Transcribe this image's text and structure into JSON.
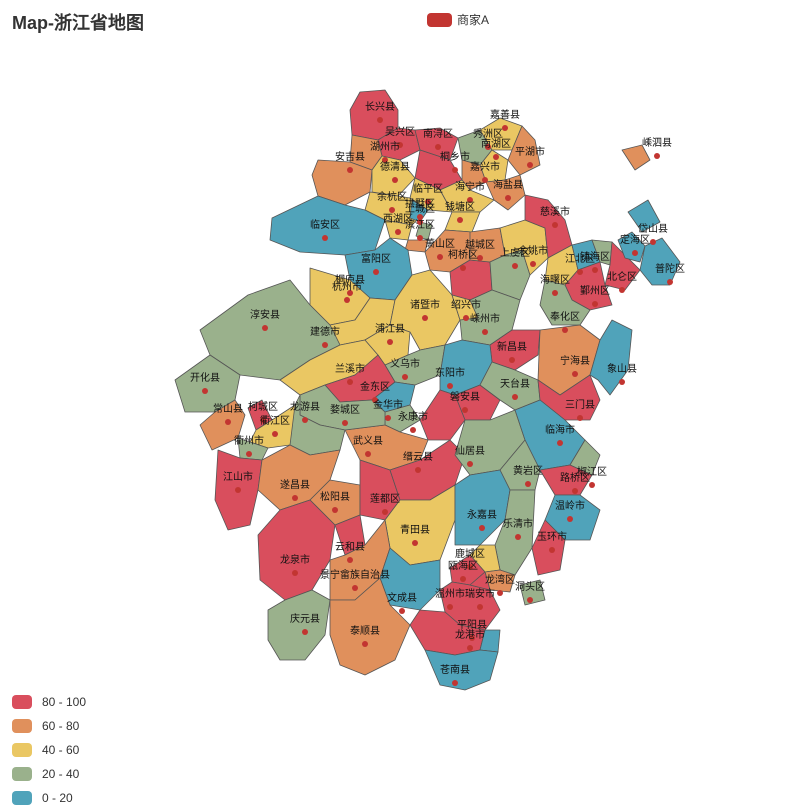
{
  "title": "Map-浙江省地图",
  "legend": {
    "label": "商家A",
    "color": "#c23531"
  },
  "visual_map": [
    {
      "label": "80 - 100",
      "color": "#d94e5d"
    },
    {
      "label": "60 - 80",
      "color": "#e0905c"
    },
    {
      "label": "40 - 60",
      "color": "#eac763"
    },
    {
      "label": "20 - 40",
      "color": "#9ab18c"
    },
    {
      "label": "0 - 20",
      "color": "#50a3ba"
    }
  ],
  "chart_data": {
    "type": "map",
    "region": "浙江",
    "series": [
      {
        "name": "商家A"
      }
    ],
    "categories": [
      "长兴县",
      "吴兴区",
      "南浔区",
      "秀洲区",
      "嘉善县",
      "湖州市",
      "安吉县",
      "德清县",
      "桐乡市",
      "南湖区",
      "平湖市",
      "嘉兴市",
      "海盐县",
      "海宁市",
      "临平区",
      "余杭区",
      "拱墅区",
      "西湖区",
      "上城区",
      "滨江区",
      "钱塘区",
      "临安区",
      "富阳区",
      "萧山区",
      "越城区",
      "柯桥区",
      "上虞区",
      "余姚市",
      "慈溪市",
      "江北区",
      "镇海区",
      "北仑区",
      "鄞州区",
      "海曙区",
      "奉化区",
      "宁海县",
      "象山县",
      "普陀区",
      "定海区",
      "岱山县",
      "嵊泗县",
      "桐庐县",
      "杭州市",
      "淳安县",
      "建德市",
      "浦江县",
      "诸暨市",
      "绍兴市",
      "嵊州市",
      "新昌县",
      "义乌市",
      "兰溪市",
      "金东区",
      "东阳市",
      "金华市",
      "磐安县",
      "天台县",
      "三门县",
      "永康市",
      "武义县",
      "婺城区",
      "开化县",
      "常山县",
      "柯城区",
      "衢江区",
      "龙游县",
      "衢州市",
      "江山市",
      "遂昌县",
      "松阳县",
      "莲都区",
      "缙云县",
      "仙居县",
      "临海市",
      "椒江区",
      "黄岩区",
      "路桥区",
      "温岭市",
      "玉环市",
      "青田县",
      "永嘉县",
      "乐清市",
      "鹿城区",
      "瓯海区",
      "龙湾区",
      "洞头区",
      "龙泉市",
      "云和县",
      "景宁畲族自治县",
      "庆元县",
      "文成县",
      "泰顺县",
      "瑞安市",
      "温州市",
      "平阳县",
      "龙港市",
      "苍南县"
    ],
    "visual_map_ranges": [
      [
        80,
        100
      ],
      [
        60,
        80
      ],
      [
        40,
        60
      ],
      [
        20,
        40
      ],
      [
        0,
        20
      ]
    ]
  }
}
